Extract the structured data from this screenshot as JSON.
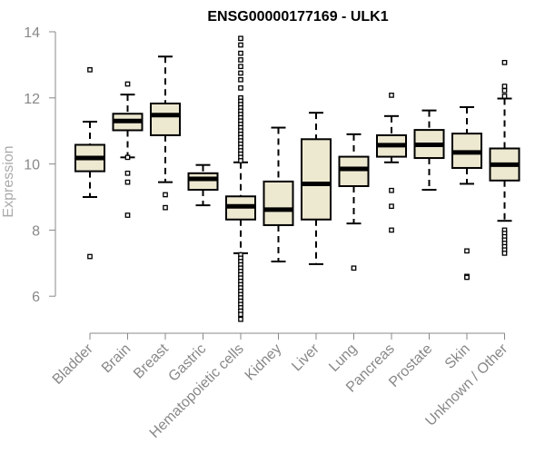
{
  "chart_data": {
    "type": "boxplot",
    "title": "ENSG00000177169 - ULK1",
    "xlabel": "",
    "ylabel": "Expression",
    "ylim": [
      5,
      14
    ],
    "yticks": [
      6,
      8,
      10,
      12,
      14
    ],
    "box_fill": "#ede8d0",
    "box_stroke": "#000000",
    "axis_color": "#888888",
    "categories": [
      "Bladder",
      "Brain",
      "Breast",
      "Gastric",
      "Hematopoietic cells",
      "Kidney",
      "Liver",
      "Lung",
      "Pancreas",
      "Prostate",
      "Skin",
      "Unknown / Other"
    ],
    "boxes": [
      {
        "name": "Bladder",
        "whisker_low": 9.0,
        "q1": 9.78,
        "median": 10.18,
        "q3": 10.58,
        "whisker_high": 11.28,
        "outliers": [
          12.85,
          7.2
        ]
      },
      {
        "name": "Brain",
        "whisker_low": 10.2,
        "q1": 11.02,
        "median": 11.3,
        "q3": 11.52,
        "whisker_high": 12.1,
        "outliers": [
          12.42,
          10.2,
          9.72,
          9.45,
          8.45
        ]
      },
      {
        "name": "Breast",
        "whisker_low": 9.45,
        "q1": 10.87,
        "median": 11.48,
        "q3": 11.83,
        "whisker_high": 13.25,
        "outliers": [
          9.07,
          8.68
        ]
      },
      {
        "name": "Gastric",
        "whisker_low": 8.75,
        "q1": 9.22,
        "median": 9.55,
        "q3": 9.72,
        "whisker_high": 9.97,
        "outliers": []
      },
      {
        "name": "Hematopoietic cells",
        "whisker_low": 7.3,
        "q1": 8.32,
        "median": 8.72,
        "q3": 9.02,
        "whisker_high": 10.05,
        "outliers": [
          13.8,
          13.6,
          13.35,
          13.15,
          12.95,
          12.75,
          12.55,
          12.3,
          12.0,
          11.9,
          11.8,
          11.7,
          11.6,
          11.5,
          11.4,
          11.3,
          11.2,
          11.1,
          11.0,
          10.9,
          10.8,
          10.7,
          10.6,
          10.5,
          10.4,
          10.3,
          10.2,
          10.1,
          7.25,
          7.15,
          7.05,
          6.95,
          6.85,
          6.75,
          6.65,
          6.55,
          6.45,
          6.35,
          6.25,
          6.15,
          6.05,
          5.95,
          5.85,
          5.75,
          5.65,
          5.55,
          5.45,
          5.3
        ]
      },
      {
        "name": "Kidney",
        "whisker_low": 7.05,
        "q1": 8.15,
        "median": 8.62,
        "q3": 9.47,
        "whisker_high": 11.1,
        "outliers": []
      },
      {
        "name": "Liver",
        "whisker_low": 6.97,
        "q1": 8.32,
        "median": 9.4,
        "q3": 10.75,
        "whisker_high": 11.55,
        "outliers": []
      },
      {
        "name": "Lung",
        "whisker_low": 8.2,
        "q1": 9.33,
        "median": 9.85,
        "q3": 10.22,
        "whisker_high": 10.9,
        "outliers": [
          6.85
        ]
      },
      {
        "name": "Pancreas",
        "whisker_low": 10.05,
        "q1": 10.22,
        "median": 10.57,
        "q3": 10.87,
        "whisker_high": 11.45,
        "outliers": [
          12.08,
          9.2,
          8.72,
          8.0
        ]
      },
      {
        "name": "Prostate",
        "whisker_low": 9.22,
        "q1": 10.18,
        "median": 10.58,
        "q3": 11.03,
        "whisker_high": 11.62,
        "outliers": []
      },
      {
        "name": "Skin",
        "whisker_low": 9.4,
        "q1": 9.88,
        "median": 10.35,
        "q3": 10.92,
        "whisker_high": 11.72,
        "outliers": [
          7.37,
          6.6,
          6.57
        ]
      },
      {
        "name": "Unknown / Other",
        "whisker_low": 8.28,
        "q1": 9.5,
        "median": 9.98,
        "q3": 10.47,
        "whisker_high": 11.98,
        "outliers": [
          13.07,
          12.35,
          12.22,
          12.05,
          8.0,
          7.9,
          7.8,
          7.7,
          7.6,
          7.5,
          7.4,
          7.3
        ]
      }
    ]
  }
}
